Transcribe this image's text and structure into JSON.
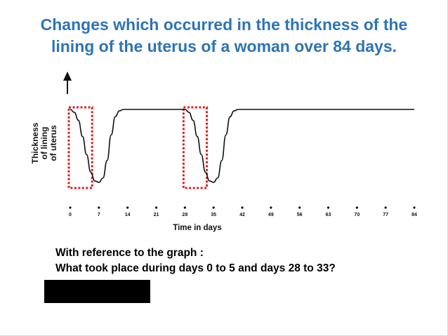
{
  "title": {
    "line1": "Changes which occurred in the thickness of the",
    "line2": "lining of the uterus of a woman over 84 days."
  },
  "question": {
    "line1": "With reference to the graph :",
    "line2": "What took place during days 0 to 5 and days 28 to 33?"
  },
  "colors": {
    "title": "#2e74b5",
    "highlight_box": "#e02020",
    "curve": "#111111",
    "redaction": "#000000"
  },
  "chart_data": {
    "type": "line",
    "title": "",
    "xlabel": "Time in days",
    "ylabel_lines": [
      "Thickness",
      "of lining",
      "of uterus"
    ],
    "xlim": [
      0,
      84
    ],
    "ylim": [
      0,
      1
    ],
    "y_scale": "relative (no tick labels)",
    "grid": false,
    "x_ticks": [
      0,
      7,
      14,
      21,
      28,
      35,
      42,
      49,
      56,
      63,
      70,
      77,
      84
    ],
    "x_tick_labels": [
      "0",
      "7",
      "14",
      "21",
      "28",
      "35",
      "42",
      "49",
      "56",
      "63",
      "70",
      "77",
      "84"
    ],
    "series": [
      {
        "x": [
          0,
          1,
          2,
          3,
          4,
          5,
          6,
          7,
          8,
          9,
          10,
          11,
          12,
          13,
          14,
          28,
          29,
          30,
          31,
          32,
          33,
          34,
          35,
          36,
          37,
          38,
          39,
          40,
          41,
          42,
          84
        ],
        "y": [
          1.0,
          0.96,
          0.85,
          0.63,
          0.38,
          0.14,
          0.02,
          0.0,
          0.06,
          0.3,
          0.65,
          0.9,
          0.98,
          1.0,
          1.0,
          1.0,
          0.96,
          0.85,
          0.63,
          0.38,
          0.14,
          0.02,
          0.0,
          0.06,
          0.3,
          0.65,
          0.9,
          0.98,
          1.0,
          1.0,
          1.0
        ]
      }
    ],
    "highlight_ranges": [
      [
        0,
        5
      ],
      [
        28,
        33
      ]
    ]
  }
}
